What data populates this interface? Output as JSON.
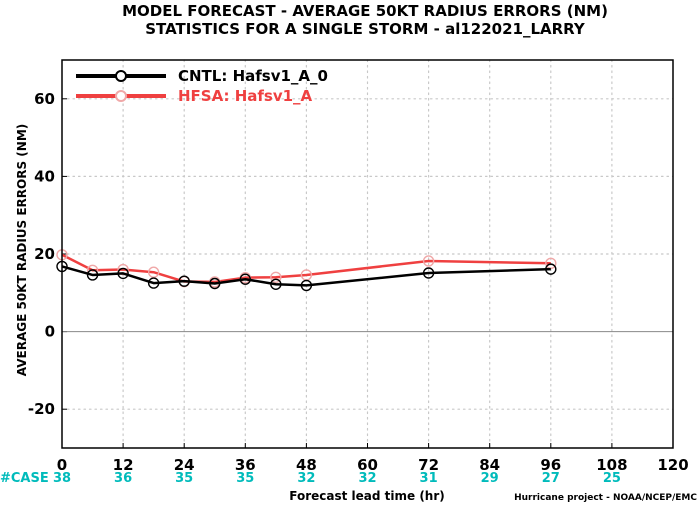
{
  "chart_data": {
    "type": "line",
    "title": "MODEL FORECAST - AVERAGE 50KT RADIUS ERRORS (NM)",
    "subtitle": "STATISTICS FOR A SINGLE STORM - al122021_LARRY",
    "xlabel": "Forecast lead time (hr)",
    "ylabel": "AVERAGE 50KT RADIUS ERRORS (NM)",
    "xlim": [
      0,
      120
    ],
    "ylim": [
      -30,
      70
    ],
    "x_ticks": [
      "0",
      "12",
      "24",
      "36",
      "48",
      "60",
      "72",
      "84",
      "96",
      "108",
      "120"
    ],
    "y_ticks": [
      "-20",
      "0",
      "20",
      "40",
      "60"
    ],
    "grid": true,
    "legend": "top-left",
    "series": [
      {
        "name": "CNTL: Hafsv1_A_0",
        "color": "#000000",
        "x": [
          0,
          6,
          12,
          18,
          24,
          30,
          36,
          42,
          48,
          72,
          96
        ],
        "y": [
          16.8,
          14.6,
          15.0,
          12.5,
          13.0,
          12.4,
          13.5,
          12.2,
          11.9,
          15.1,
          16.1
        ]
      },
      {
        "name": "HFSA: Hafsv1_A",
        "color": "#ef4040",
        "x": [
          0,
          6,
          12,
          18,
          24,
          30,
          36,
          42,
          48,
          72,
          96
        ],
        "y": [
          19.8,
          15.8,
          16.0,
          15.3,
          12.9,
          12.8,
          13.9,
          14.0,
          14.6,
          18.2,
          17.6
        ]
      }
    ],
    "case_counts": {
      "label": "#CASE",
      "x": [
        0,
        12,
        24,
        36,
        48,
        60,
        72,
        84,
        96,
        108
      ],
      "values": [
        "38",
        "36",
        "35",
        "35",
        "32",
        "32",
        "31",
        "29",
        "27",
        "25"
      ],
      "color": "#00bbbb"
    },
    "credit": "Hurricane project - NOAA/NCEP/EMC"
  }
}
